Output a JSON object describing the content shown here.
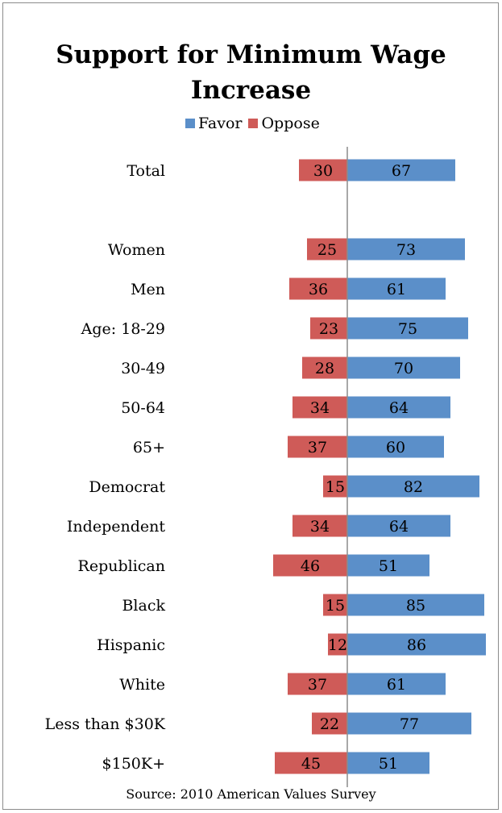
{
  "chart_data": {
    "type": "bar",
    "title": "Support for Minimum Wage Increase",
    "categories": [
      "Total",
      "",
      "Women",
      "Men",
      "Age: 18-29",
      "30-49",
      "50-64",
      "65+",
      "Democrat",
      "Independent",
      "Republican",
      "Black",
      "Hispanic",
      "White",
      "Less than $30K",
      "$150K+"
    ],
    "series": [
      {
        "name": "Favor",
        "color": "#5b8fc9",
        "values": [
          67,
          null,
          73,
          61,
          75,
          70,
          64,
          60,
          82,
          64,
          51,
          85,
          86,
          61,
          77,
          51
        ]
      },
      {
        "name": "Oppose",
        "color": "#cf5b58",
        "values": [
          30,
          null,
          25,
          36,
          23,
          28,
          34,
          37,
          15,
          34,
          46,
          15,
          12,
          37,
          22,
          45
        ]
      }
    ],
    "orientation": "horizontal-diverging",
    "legend_position": "top",
    "source": "Source: 2010 American Values Survey"
  }
}
